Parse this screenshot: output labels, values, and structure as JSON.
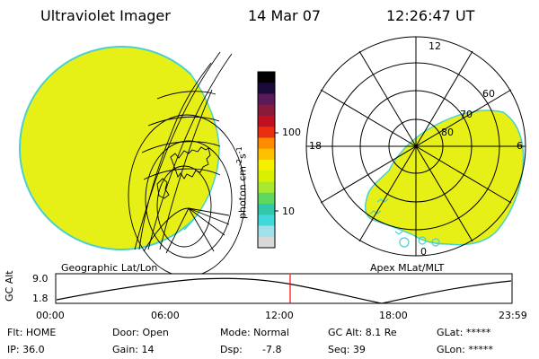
{
  "header": {
    "title": "Ultraviolet Imager",
    "date": "14 Mar 07",
    "time": "12:26:47 UT"
  },
  "colorbar": {
    "unit_label": "photon cm",
    "unit_sup1": "-2",
    "unit_s": "s",
    "unit_sup2": "-1",
    "ticks": [
      "100",
      "10"
    ],
    "colors": [
      "#000000",
      "#1a0a3a",
      "#5a1a5a",
      "#8a1a3a",
      "#c01020",
      "#e83010",
      "#ff8c00",
      "#ffc000",
      "#f5f000",
      "#d8f000",
      "#a8e830",
      "#60d860",
      "#30c8a8",
      "#40d8d8",
      "#a0e0e8",
      "#d8d8d8"
    ]
  },
  "left_panel": {
    "label": "Geographic Lat/Lon",
    "fill_color": "#e6f016"
  },
  "right_panel": {
    "label": "Apex MLat/MLT",
    "fill_color": "#e6f016",
    "hour_labels": [
      "12",
      "18",
      "6",
      "0"
    ],
    "lat_labels": [
      "60",
      "70",
      "80"
    ]
  },
  "altitude_plot": {
    "ylabel": "GC Alt",
    "yticks": [
      "9.0",
      "1.8"
    ],
    "xticks": [
      "00:00",
      "06:00",
      "12:00",
      "18:00",
      "23:59"
    ],
    "marker_color": "#ff0000"
  },
  "info": {
    "row1": {
      "flt": "Flt: HOME",
      "door": "Door: Open",
      "mode": "Mode: Normal",
      "gcalt": "GC Alt: 8.1 Re",
      "glat": "GLat: *****"
    },
    "row2": {
      "ip": "IP: 36.0",
      "gain": "Gain: 14",
      "dsp_label": "Dsp:",
      "dsp_value": "-7.8",
      "seq": "Seq: 39",
      "glon": "GLon: *****"
    }
  }
}
